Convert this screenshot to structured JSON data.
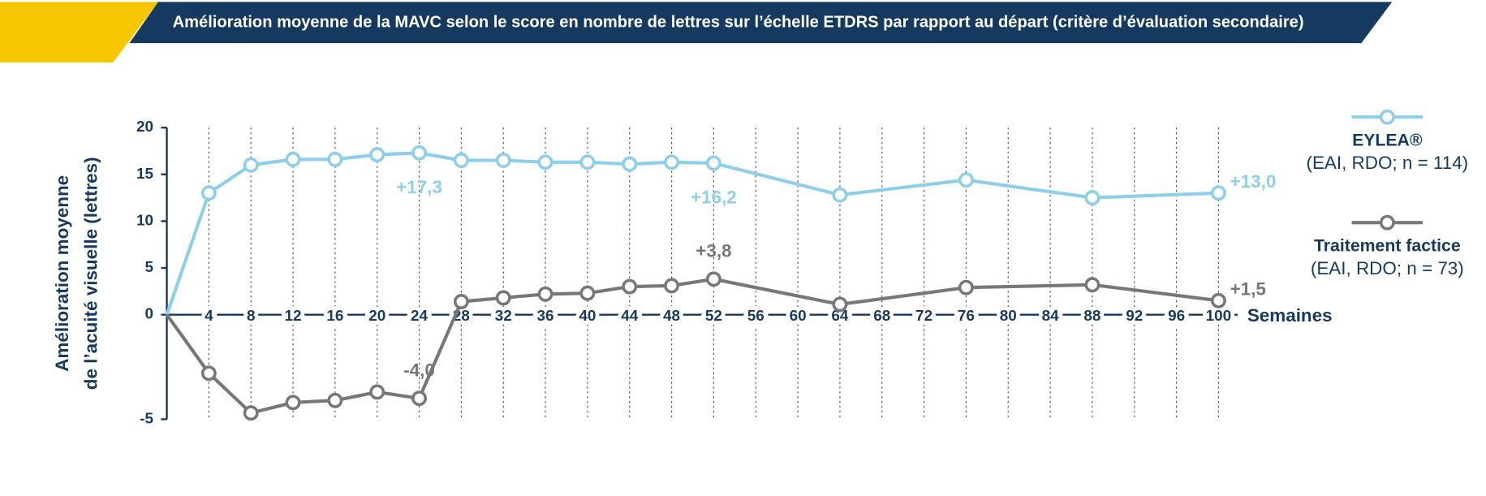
{
  "chart_data": {
    "type": "line",
    "title": "Amélioration moyenne de la MAVC selon le score en nombre de lettres sur l’échelle ETDRS par rapport au départ (critère d’évaluation secondaire)",
    "ylabel": [
      "Amélioration moyenne",
      "de l’acuité visuelle (lettres)"
    ],
    "xlabel": "Semaines",
    "x": [
      0,
      4,
      8,
      12,
      16,
      20,
      24,
      28,
      32,
      36,
      40,
      44,
      48,
      52,
      64,
      76,
      88,
      100
    ],
    "xlim": [
      0,
      100
    ],
    "xticks": [
      4,
      8,
      12,
      16,
      20,
      24,
      28,
      32,
      36,
      40,
      44,
      48,
      52,
      56,
      60,
      64,
      68,
      72,
      76,
      80,
      84,
      88,
      92,
      96,
      100
    ],
    "ylim": [
      -5,
      20
    ],
    "yticks": [
      20,
      15,
      10,
      5,
      0,
      -5
    ],
    "grid": true,
    "legend": "right",
    "series": [
      {
        "name": "EYLEA®",
        "note": "(EAI, RDO; n = 114)",
        "color": "#8dcfe9",
        "values": [
          0,
          13.0,
          16.0,
          16.6,
          16.6,
          17.1,
          17.3,
          16.5,
          16.5,
          16.3,
          16.3,
          16.1,
          16.3,
          16.2,
          12.8,
          14.4,
          12.5,
          13.0
        ],
        "value_labels": [
          null,
          null,
          null,
          null,
          null,
          null,
          "+17,3",
          null,
          null,
          null,
          null,
          null,
          null,
          "+16,2",
          null,
          null,
          null,
          "+13,0"
        ]
      },
      {
        "name": "Traitement factice",
        "note": "(EAI, RDO; n = 73)",
        "color": "#777777",
        "values": [
          0,
          -2.8,
          -4.7,
          -4.2,
          -4.1,
          -3.7,
          -4.0,
          1.4,
          1.8,
          2.2,
          2.3,
          3.0,
          3.1,
          3.8,
          1.1,
          2.9,
          3.2,
          1.5
        ],
        "value_labels": [
          null,
          null,
          null,
          null,
          null,
          null,
          "-4,0",
          null,
          null,
          null,
          null,
          null,
          null,
          "+3,8",
          null,
          null,
          null,
          "+1,5"
        ]
      }
    ]
  }
}
